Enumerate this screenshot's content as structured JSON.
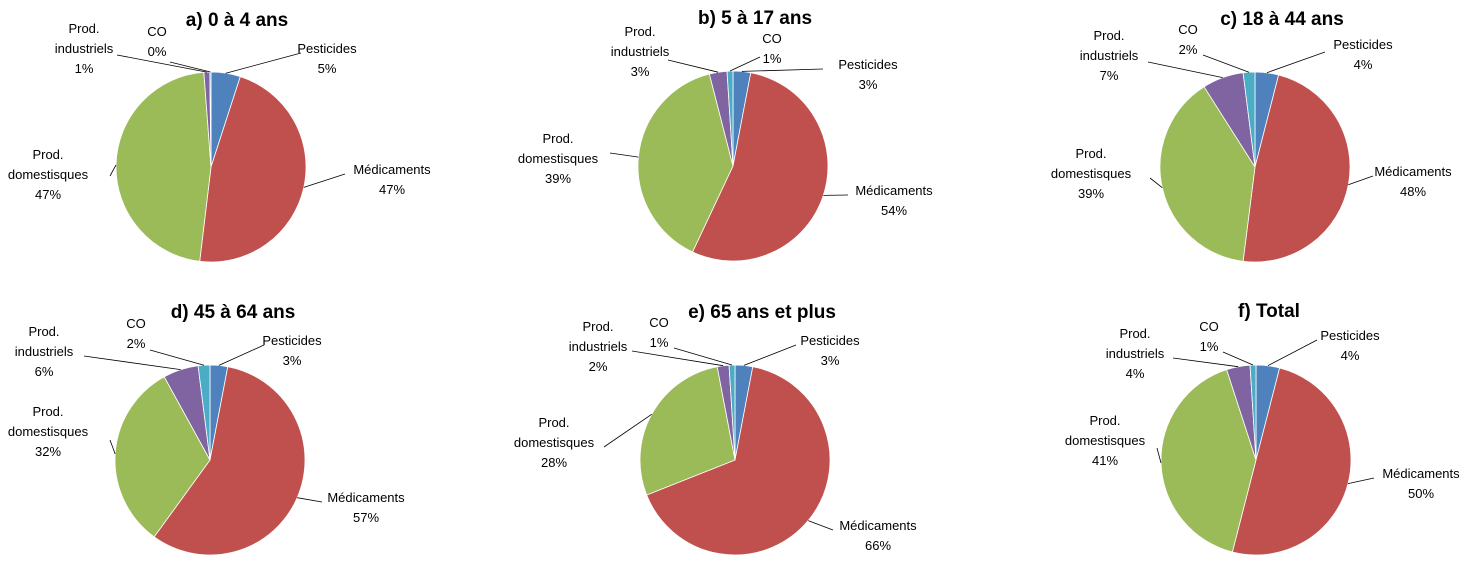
{
  "chart_data": [
    {
      "type": "pie",
      "title": "a) 0 à 4 ans",
      "slices": [
        {
          "name": "Pesticides",
          "value": 5,
          "label": "5%"
        },
        {
          "name": "Médicaments",
          "value": 47,
          "label": "47%"
        },
        {
          "name": "Prod. domestisques",
          "value": 47,
          "label": "47%"
        },
        {
          "name": "Prod. industriels",
          "value": 1,
          "label": "1%"
        },
        {
          "name": "CO",
          "value": 0.2,
          "label": "0%"
        }
      ]
    },
    {
      "type": "pie",
      "title": "b) 5 à 17 ans",
      "slices": [
        {
          "name": "Pesticides",
          "value": 3,
          "label": "3%"
        },
        {
          "name": "Médicaments",
          "value": 54,
          "label": "54%"
        },
        {
          "name": "Prod. domestisques",
          "value": 39,
          "label": "39%"
        },
        {
          "name": "Prod. industriels",
          "value": 3,
          "label": "3%"
        },
        {
          "name": "CO",
          "value": 1,
          "label": "1%"
        }
      ]
    },
    {
      "type": "pie",
      "title": "c) 18 à 44 ans",
      "slices": [
        {
          "name": "Pesticides",
          "value": 4,
          "label": "4%"
        },
        {
          "name": "Médicaments",
          "value": 48,
          "label": "48%"
        },
        {
          "name": "Prod. domestisques",
          "value": 39,
          "label": "39%"
        },
        {
          "name": "Prod. industriels",
          "value": 7,
          "label": "7%"
        },
        {
          "name": "CO",
          "value": 2,
          "label": "2%"
        }
      ]
    },
    {
      "type": "pie",
      "title": "d) 45 à 64 ans",
      "slices": [
        {
          "name": "Pesticides",
          "value": 3,
          "label": "3%"
        },
        {
          "name": "Médicaments",
          "value": 57,
          "label": "57%"
        },
        {
          "name": "Prod. domestisques",
          "value": 32,
          "label": "32%"
        },
        {
          "name": "Prod. industriels",
          "value": 6,
          "label": "6%"
        },
        {
          "name": "CO",
          "value": 2,
          "label": "2%"
        }
      ]
    },
    {
      "type": "pie",
      "title": "e) 65 ans et plus",
      "slices": [
        {
          "name": "Pesticides",
          "value": 3,
          "label": "3%"
        },
        {
          "name": "Médicaments",
          "value": 66,
          "label": "66%"
        },
        {
          "name": "Prod. domestisques",
          "value": 28,
          "label": "28%"
        },
        {
          "name": "Prod. industriels",
          "value": 2,
          "label": "2%"
        },
        {
          "name": "CO",
          "value": 1,
          "label": "1%"
        }
      ]
    },
    {
      "type": "pie",
      "title": "f) Total",
      "slices": [
        {
          "name": "Pesticides",
          "value": 4,
          "label": "4%"
        },
        {
          "name": "Médicaments",
          "value": 50,
          "label": "50%"
        },
        {
          "name": "Prod. domestisques",
          "value": 41,
          "label": "41%"
        },
        {
          "name": "Prod. industriels",
          "value": 4,
          "label": "4%"
        },
        {
          "name": "CO",
          "value": 1,
          "label": "1%"
        }
      ]
    }
  ],
  "colors": {
    "Pesticides": "#4f81bd",
    "Médicaments": "#c0504d",
    "Prod. domestisques": "#9bbb59",
    "Prod. industriels": "#8064a2",
    "CO": "#4bacc6"
  }
}
